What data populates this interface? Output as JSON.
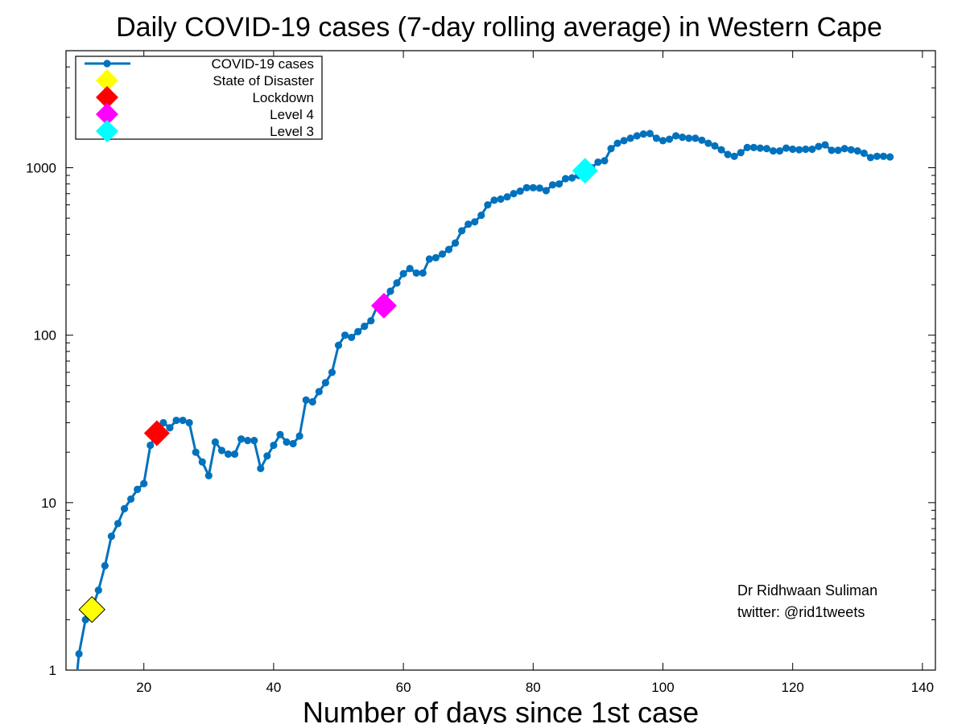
{
  "chart_data": {
    "type": "line",
    "title": "Daily COVID-19 cases (7-day rolling average) in Western Cape",
    "xlabel": "Number of days since 1st case",
    "ylabel": "",
    "y_scale": "log",
    "xlim": [
      8,
      142
    ],
    "ylim": [
      1,
      5000
    ],
    "x_ticks": [
      20,
      40,
      60,
      80,
      100,
      120,
      140
    ],
    "y_ticks": [
      1,
      10,
      100,
      1000
    ],
    "grid": false,
    "legend_position": "top-left",
    "credit_lines": [
      "Dr Ridhwaan Suliman",
      "twitter: @rid1tweets"
    ],
    "series": [
      {
        "name": "COVID-19 cases",
        "color": "#0072bd",
        "x": [
          10,
          11,
          12,
          13,
          14,
          15,
          16,
          17,
          18,
          19,
          20,
          21,
          22,
          23,
          24,
          25,
          26,
          27,
          28,
          29,
          30,
          31,
          32,
          33,
          34,
          35,
          36,
          37,
          38,
          39,
          40,
          41,
          42,
          43,
          44,
          45,
          46,
          47,
          48,
          49,
          50,
          51,
          52,
          53,
          54,
          55,
          56,
          57,
          58,
          59,
          60,
          61,
          62,
          63,
          64,
          65,
          66,
          67,
          68,
          69,
          70,
          71,
          72,
          73,
          74,
          75,
          76,
          77,
          78,
          79,
          80,
          81,
          82,
          83,
          84,
          85,
          86,
          87,
          88,
          89,
          90,
          91,
          92,
          93,
          94,
          95,
          96,
          97,
          98,
          99,
          100,
          101,
          102,
          103,
          104,
          105,
          106,
          107,
          108,
          109,
          110,
          111,
          112,
          113,
          114,
          115,
          116,
          117,
          118,
          119,
          120,
          121,
          122,
          123,
          124,
          125,
          126,
          127,
          128,
          129,
          130,
          131,
          132,
          133,
          134,
          135
        ],
        "y": [
          1.25,
          2.0,
          2.3,
          3.0,
          4.2,
          6.3,
          7.5,
          9.2,
          10.5,
          12,
          13,
          22,
          26,
          30,
          28,
          31,
          31,
          30,
          20,
          17.5,
          14.5,
          23,
          20.5,
          19.5,
          19.5,
          24,
          23.5,
          23.5,
          16,
          19,
          22,
          25.5,
          23,
          22.5,
          25,
          41,
          40,
          46,
          52,
          60,
          87,
          100,
          97,
          105,
          113,
          122,
          150,
          158,
          183,
          205,
          233,
          250,
          235,
          235,
          285,
          290,
          305,
          325,
          355,
          420,
          460,
          475,
          520,
          600,
          640,
          650,
          670,
          700,
          725,
          760,
          760,
          755,
          730,
          790,
          800,
          860,
          870,
          900,
          950,
          1000,
          1080,
          1100,
          1300,
          1400,
          1450,
          1500,
          1550,
          1590,
          1600,
          1500,
          1450,
          1480,
          1550,
          1520,
          1500,
          1500,
          1460,
          1400,
          1350,
          1280,
          1200,
          1170,
          1230,
          1320,
          1320,
          1310,
          1300,
          1260,
          1260,
          1310,
          1290,
          1280,
          1290,
          1290,
          1340,
          1370,
          1270,
          1270,
          1300,
          1280,
          1260,
          1220,
          1150,
          1170,
          1170,
          1160
        ]
      }
    ],
    "markers": [
      {
        "name": "State of Disaster",
        "x": 12,
        "y": 2.3,
        "color": "#ffff00"
      },
      {
        "name": "Lockdown",
        "x": 22,
        "y": 26,
        "color": "#ff0000"
      },
      {
        "name": "Level 4",
        "x": 57,
        "y": 150,
        "color": "#ff00ff"
      },
      {
        "name": "Level 3",
        "x": 88,
        "y": 960,
        "color": "#00ffff"
      }
    ]
  }
}
